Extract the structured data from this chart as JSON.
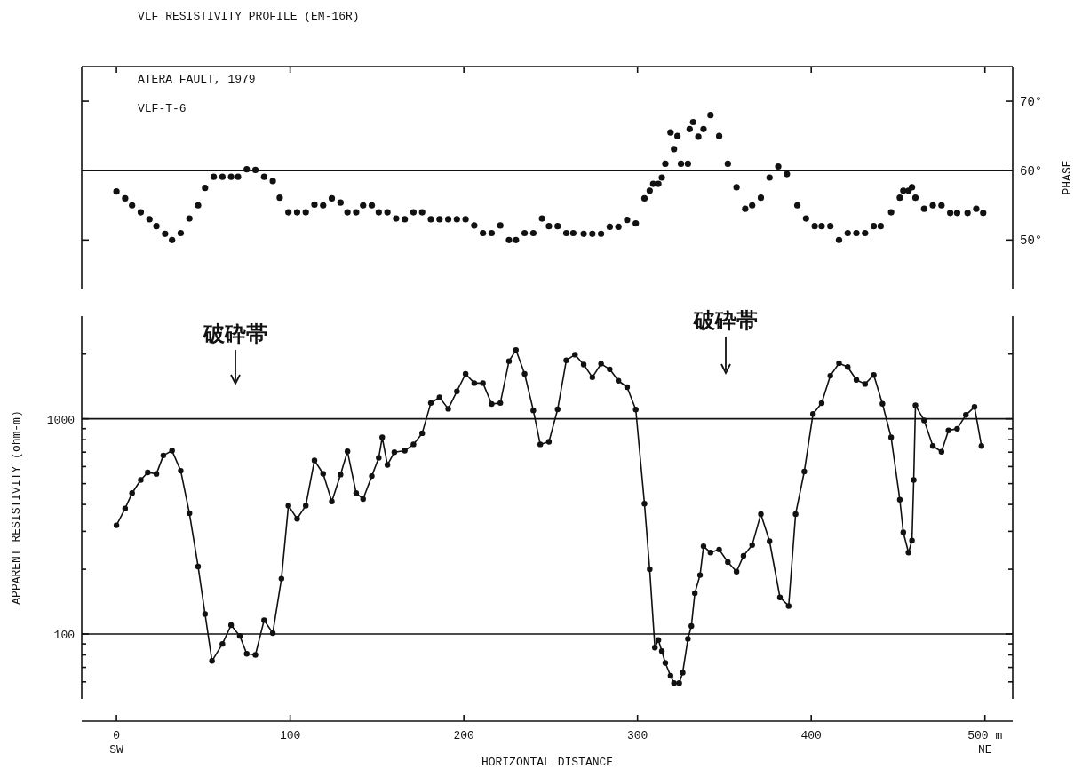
{
  "chart_data": [
    {
      "type": "scatter",
      "title": "VLF RESISTIVITY PROFILE  (EM-16R)",
      "y2label": "PHASE",
      "annotations": [
        "ATERA FAULT, 1979",
        "VLF-T-6"
      ],
      "xlim": [
        -20,
        516
      ],
      "xticks": [
        {
          "value": 0,
          "label": null
        },
        {
          "value": 100,
          "label": null
        },
        {
          "value": 200,
          "label": null
        },
        {
          "value": 300,
          "label": null
        },
        {
          "value": 400,
          "label": null
        },
        {
          "value": 500,
          "label": null
        }
      ],
      "y2lim": [
        43,
        75
      ],
      "y2ticks": [
        {
          "value": 50,
          "label": "50°"
        },
        {
          "value": 60,
          "label": "60°"
        },
        {
          "value": 70,
          "label": "70°"
        }
      ],
      "tick_labels": "y",
      "marker": "circle",
      "ref_lines": [
        {
          "axis": "y2",
          "value": 60
        }
      ],
      "series": [
        {
          "axis": "y2",
          "color": "#111111",
          "x": [
            0,
            5,
            9,
            14,
            19,
            23,
            28,
            32,
            37,
            42,
            47,
            51,
            56,
            61,
            66,
            70,
            75,
            80,
            85,
            90,
            94,
            99,
            104,
            109,
            114,
            119,
            124,
            129,
            133,
            138,
            142,
            147,
            151,
            156,
            161,
            166,
            171,
            176,
            181,
            186,
            191,
            196,
            201,
            206,
            211,
            216,
            221,
            226,
            230,
            235,
            240,
            245,
            249,
            254,
            259,
            263,
            269,
            274,
            279,
            284,
            289,
            294,
            299,
            304,
            307,
            309,
            312,
            314,
            316,
            319,
            321,
            323,
            325,
            329,
            330,
            332,
            335,
            338,
            342,
            347,
            352,
            357,
            362,
            366,
            371,
            376,
            381,
            386,
            392,
            397,
            402,
            406,
            411,
            416,
            421,
            426,
            431,
            436,
            440,
            446,
            451,
            453,
            456,
            458,
            460,
            465,
            470,
            475,
            480,
            484,
            490,
            495,
            499
          ],
          "values": [
            57,
            56,
            55,
            54,
            53,
            52,
            50.9,
            50,
            51,
            53.1,
            55,
            57.5,
            59.1,
            59.1,
            59.1,
            59.1,
            60.2,
            60.1,
            59.1,
            58.5,
            56.1,
            54,
            54,
            54,
            55.1,
            55,
            56,
            55.4,
            54,
            54,
            55,
            55,
            54,
            54,
            53.1,
            53,
            54,
            54,
            53,
            53,
            53,
            53,
            53,
            52.1,
            51,
            51,
            52.1,
            50,
            50,
            51,
            51,
            53.1,
            52,
            52,
            51,
            51,
            50.9,
            50.9,
            50.9,
            51.9,
            51.9,
            52.9,
            52.4,
            56,
            57.1,
            58.1,
            58.1,
            59,
            61,
            65.5,
            63.1,
            65,
            61,
            61,
            66,
            67,
            64.9,
            66,
            68,
            65,
            61,
            57.6,
            54.5,
            55,
            56.1,
            59,
            60.6,
            59.5,
            55,
            53.1,
            52,
            52,
            52,
            50,
            51,
            51,
            51,
            52,
            52,
            54,
            56.1,
            57.1,
            57.1,
            57.6,
            56.1,
            54.5,
            55,
            55,
            53.9,
            53.9,
            53.9,
            54.5,
            53.9
          ]
        }
      ]
    },
    {
      "type": "line",
      "xlabel": "HORIZONTAL DISTANCE",
      "ylabel": "APPARENT RESISTIVITY (ohm-m)",
      "xlim": [
        -20,
        516
      ],
      "xticks": [
        {
          "value": 0,
          "label": "0\nSW"
        },
        100,
        200,
        300,
        400,
        {
          "value": 500,
          "label": "500 m\nNE"
        }
      ],
      "ylim": [
        50,
        3000
      ],
      "log": true,
      "yticks": [
        {
          "value": 60,
          "label": null
        },
        {
          "value": 70,
          "label": null
        },
        {
          "value": 80,
          "label": null
        },
        {
          "value": 90,
          "label": null
        },
        100,
        {
          "value": 200,
          "label": null
        },
        {
          "value": 300,
          "label": null
        },
        {
          "value": 400,
          "label": null
        },
        {
          "value": 500,
          "label": null
        },
        {
          "value": 600,
          "label": null
        },
        {
          "value": 700,
          "label": null
        },
        {
          "value": 800,
          "label": null
        },
        {
          "value": 900,
          "label": null
        },
        1000,
        {
          "value": 2000,
          "label": null
        }
      ],
      "marker": "circle",
      "line_style": "solid",
      "ref_lines": [
        {
          "axis": "y",
          "value": 100
        },
        {
          "axis": "y",
          "value": 1000
        }
      ],
      "annotations": [
        "破砕帯",
        "破砕帯"
      ],
      "series": [
        {
          "color": "#111111",
          "x": [
            0,
            5,
            9,
            14,
            18,
            23,
            27,
            32,
            37,
            42,
            47,
            51,
            55,
            61,
            66,
            71,
            75,
            80,
            85,
            90,
            95,
            99,
            104,
            109,
            114,
            119,
            124,
            129,
            133,
            138,
            142,
            147,
            151,
            153,
            156,
            160,
            166,
            171,
            176,
            181,
            186,
            191,
            196,
            201,
            206,
            211,
            216,
            221,
            226,
            230,
            235,
            240,
            244,
            249,
            254,
            259,
            264,
            269,
            274,
            279,
            284,
            289,
            294,
            299,
            304,
            307,
            310,
            312,
            314,
            316,
            319,
            321,
            324,
            326,
            329,
            331,
            333,
            336,
            338,
            342,
            347,
            352,
            357,
            361,
            366,
            371,
            376,
            382,
            387,
            391,
            396,
            401,
            406,
            411,
            416,
            421,
            426,
            431,
            436,
            441,
            446,
            451,
            453,
            456,
            458,
            459,
            460,
            465,
            470,
            475,
            479,
            484,
            489,
            494,
            498
          ],
          "values": [
            320,
            383,
            452,
            520,
            564,
            555,
            676,
            711,
            574,
            364,
            206,
            124,
            75,
            90,
            110,
            98,
            81,
            80,
            116,
            101,
            181,
            395,
            343,
            395,
            641,
            556,
            413,
            551,
            706,
            452,
            424,
            542,
            659,
            820,
            611,
            700,
            711,
            761,
            857,
            1184,
            1258,
            1113,
            1342,
            1618,
            1466,
            1466,
            1171,
            1184,
            1854,
            2089,
            1618,
            1094,
            761,
            782,
            1106,
            1871,
            1986,
            1787,
            1560,
            1803,
            1699,
            1503,
            1403,
            1104,
            403,
            200,
            86.5,
            93.9,
            83.4,
            73.5,
            64,
            59.2,
            59.2,
            66.2,
            94.9,
            109,
            155,
            188,
            256,
            239,
            247,
            216,
            195,
            231,
            259,
            361,
            270,
            148,
            135,
            361,
            569,
            1052,
            1183,
            1586,
            1814,
            1742,
            1518,
            1452,
            1598,
            1174,
            820,
            421,
            297,
            239,
            272,
            520,
            1154,
            983,
            748,
            703,
            884,
            899,
            1042,
            1135,
            748
          ]
        }
      ]
    }
  ]
}
